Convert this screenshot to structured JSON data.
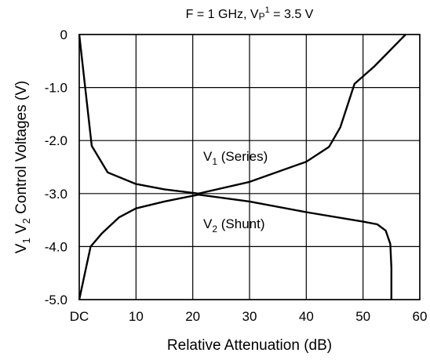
{
  "chart_data": {
    "type": "line",
    "title_parts": [
      "F = 1 GHz, V",
      "P",
      "1",
      " = 3.5 V"
    ],
    "xlabel": "Relative Attenuation (dB)",
    "ylabel_parts": [
      "V",
      "1",
      " V",
      "2",
      " Control Voltages (V)"
    ],
    "xlim": [
      0,
      60
    ],
    "ylim": [
      -5.0,
      0
    ],
    "x_ticks": [
      0,
      10,
      20,
      30,
      40,
      50,
      60
    ],
    "x_tick_labels": [
      "DC",
      "10",
      "20",
      "30",
      "40",
      "50",
      "60"
    ],
    "y_ticks": [
      0,
      -1,
      -2,
      -3,
      -4,
      -5
    ],
    "y_tick_labels": [
      "0",
      "-1.0",
      "-2.0",
      "-3.0",
      "-4.0",
      "-5.0"
    ],
    "grid": true,
    "series": [
      {
        "name_parts": [
          "V",
          "1",
          " (Series)"
        ],
        "x": [
          0,
          2.2,
          5,
          10,
          15,
          21,
          30,
          40,
          44,
          46,
          48.5,
          52,
          57.5
        ],
        "y": [
          0,
          -2.1,
          -2.6,
          -2.82,
          -2.92,
          -3.0,
          -2.78,
          -2.4,
          -2.12,
          -1.75,
          -0.93,
          -0.6,
          0
        ]
      },
      {
        "name_parts": [
          "V",
          "2",
          " (Shunt)"
        ],
        "x": [
          0,
          1,
          2,
          4,
          7,
          10,
          15,
          21,
          30,
          40,
          50,
          52.5,
          54,
          54.8,
          55,
          55
        ],
        "y": [
          -5.0,
          -4.5,
          -4.0,
          -3.75,
          -3.45,
          -3.28,
          -3.15,
          -3.02,
          -3.15,
          -3.35,
          -3.53,
          -3.58,
          -3.7,
          -3.95,
          -4.4,
          -5.0
        ]
      }
    ]
  }
}
